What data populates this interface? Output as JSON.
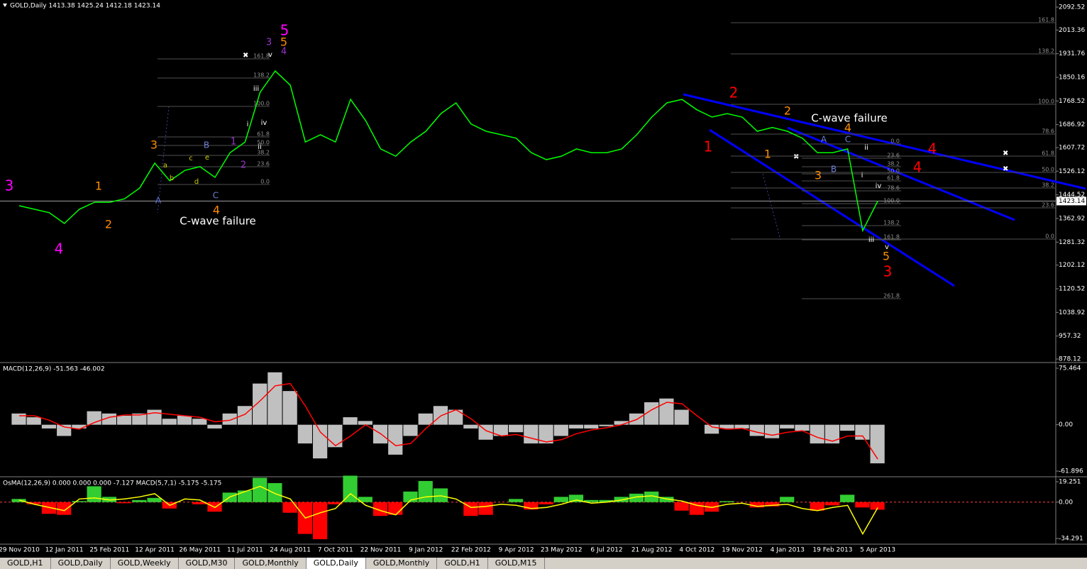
{
  "header": "GOLD,Daily  1413.38 1425.24 1412.18 1423.14",
  "chart_data": [
    {
      "type": "line",
      "title": "GOLD,Daily  1413.38 1425.24 1412.18 1423.14",
      "color": "#00ff00",
      "categories": [
        "29 Nov 2010",
        null,
        null,
        "12 Jan 2011",
        null,
        null,
        "25 Feb 2011",
        null,
        null,
        "12 Apr 2011",
        null,
        null,
        "26 May 2011",
        null,
        null,
        "11 Jul 2011",
        null,
        null,
        "24 Aug 2011",
        null,
        null,
        "7 Oct 2011",
        null,
        null,
        "22 Nov 2011",
        null,
        null,
        "9 Jan 2012",
        null,
        null,
        "22 Feb 2012",
        null,
        null,
        "9 Apr 2012",
        null,
        null,
        "23 May 2012",
        null,
        null,
        "6 Jul 2012",
        null,
        null,
        "21 Aug 2012",
        null,
        null,
        "4 Oct 2012",
        null,
        null,
        "19 Nov 2012",
        null,
        null,
        "4 Jan 2013",
        null,
        null,
        "19 Feb 2013",
        null,
        null,
        "5 Apr 2013"
      ],
      "values": [
        1407,
        1395,
        1383,
        1346,
        1395,
        1419,
        1419,
        1431,
        1468,
        1554,
        1493,
        1529,
        1542,
        1505,
        1590,
        1627,
        1799,
        1872,
        1823,
        1627,
        1652,
        1627,
        1774,
        1701,
        1603,
        1578,
        1627,
        1664,
        1725,
        1762,
        1689,
        1664,
        1652,
        1640,
        1590,
        1566,
        1578,
        1603,
        1590,
        1590,
        1603,
        1652,
        1713,
        1762,
        1774,
        1738,
        1713,
        1725,
        1713,
        1664,
        1677,
        1664,
        1640,
        1590,
        1590,
        1603,
        1321,
        1423.14
      ],
      "current_price": 1423.14,
      "ylim": [
        868.3,
        2117.0
      ],
      "yticks": [
        2092.52,
        2013.36,
        1931.76,
        1850.16,
        1768.52,
        1686.92,
        1607.72,
        1526.12,
        1444.52,
        1362.92,
        1281.32,
        1202.12,
        1120.52,
        1038.92,
        957.32,
        878.12
      ],
      "fib_levels": [
        "0.0",
        "23.6",
        "38.2",
        "50.0",
        "61.8",
        "78.6",
        "100.0",
        "138.2",
        "161.8",
        "261.8"
      ],
      "annotations": [
        {
          "text": "3",
          "color": "#ff00ff"
        },
        {
          "text": "4",
          "color": "#ff00ff"
        },
        {
          "text": "5",
          "color": "#ff00ff"
        },
        {
          "text": "1",
          "color": "#ff8c00"
        },
        {
          "text": "2",
          "color": "#ff8c00"
        },
        {
          "text": "3",
          "color": "#ff8c00"
        },
        {
          "text": "4",
          "color": "#ff8c00"
        },
        {
          "text": "5",
          "color": "#ff8c00"
        },
        {
          "text": "3",
          "color": "#9932cc"
        },
        {
          "text": "4",
          "color": "#9932cc"
        },
        {
          "text": "1",
          "color": "#9932cc"
        },
        {
          "text": "2",
          "color": "#9932cc"
        },
        {
          "text": "C-wave failure",
          "color": "#ffffff"
        },
        {
          "text": "C-wave failure",
          "color": "#ffffff"
        },
        {
          "text": "1",
          "color": "#ff0000"
        },
        {
          "text": "2",
          "color": "#ff0000"
        },
        {
          "text": "3",
          "color": "#ff0000"
        },
        {
          "text": "4",
          "color": "#ff0000"
        },
        {
          "text": "4",
          "color": "#ff0000"
        },
        {
          "text": "2",
          "color": "#ff8c00"
        },
        {
          "text": "4",
          "color": "#ff8c00"
        },
        {
          "text": "1",
          "color": "#ff8c00"
        },
        {
          "text": "3",
          "color": "#ff8c00"
        },
        {
          "text": "5",
          "color": "#ff8c00"
        },
        {
          "text": "A",
          "color": "#6a7fd8"
        },
        {
          "text": "B",
          "color": "#6a7fd8"
        },
        {
          "text": "C",
          "color": "#6a7fd8"
        },
        {
          "text": "A",
          "color": "#6a7fd8"
        },
        {
          "text": "B",
          "color": "#6a7fd8"
        },
        {
          "text": "C",
          "color": "#6a7fd8"
        },
        {
          "text": "a",
          "color": "#cccc00"
        },
        {
          "text": "b",
          "color": "#cccc00"
        },
        {
          "text": "c",
          "color": "#cccc00"
        },
        {
          "text": "d",
          "color": "#cccc00"
        },
        {
          "text": "e",
          "color": "#cccc00"
        },
        {
          "text": "i",
          "color": "#ffffff"
        },
        {
          "text": "ii",
          "color": "#ffffff"
        },
        {
          "text": "iii",
          "color": "#ffffff"
        },
        {
          "text": "iv",
          "color": "#ffffff"
        },
        {
          "text": "v",
          "color": "#ffffff"
        },
        {
          "text": "i",
          "color": "#ffffff"
        },
        {
          "text": "ii",
          "color": "#ffffff"
        },
        {
          "text": "iii",
          "color": "#ffffff"
        },
        {
          "text": "iv",
          "color": "#ffffff"
        },
        {
          "text": "v",
          "color": "#ffffff"
        }
      ]
    },
    {
      "type": "bar",
      "title": "MACD(12,26,9) -51.563 -46.002",
      "color": "#c0c0c0",
      "values": [
        15,
        10,
        -5,
        -15,
        -5,
        18,
        15,
        12,
        15,
        20,
        8,
        12,
        8,
        -5,
        15,
        25,
        55,
        70,
        45,
        -25,
        -45,
        -30,
        10,
        5,
        -25,
        -40,
        -15,
        15,
        25,
        20,
        -5,
        -20,
        -15,
        -10,
        -25,
        -25,
        -15,
        -5,
        -5,
        -2,
        5,
        15,
        30,
        35,
        20,
        0,
        -12,
        -5,
        -5,
        -15,
        -18,
        -5,
        -8,
        -25,
        -25,
        -8,
        -20,
        -51.563
      ],
      "signal": [
        12,
        12,
        6,
        -3,
        -6,
        3,
        10,
        13,
        13,
        16,
        14,
        12,
        10,
        4,
        6,
        14,
        32,
        52,
        55,
        25,
        -10,
        -28,
        -15,
        0,
        -12,
        -28,
        -25,
        -5,
        12,
        20,
        8,
        -8,
        -15,
        -13,
        -18,
        -23,
        -20,
        -12,
        -7,
        -4,
        0,
        7,
        20,
        30,
        28,
        12,
        -3,
        -6,
        -5,
        -10,
        -14,
        -10,
        -8,
        -17,
        -22,
        -15,
        -15,
        -46.002
      ],
      "signal_color": "#ff0000",
      "ylim": [
        -67.6,
        82.1
      ],
      "yticks": [
        75.464,
        {
          "value": 0,
          "label": "0.00"
        },
        -61.896
      ]
    },
    {
      "type": "bar",
      "title": "OsMA(12,26,9) 0.000 0.000 0.000 -7.127 MACD(5,7,1) -5.175 -5.175",
      "up_color": "#32cd32",
      "down_color": "#ff0000",
      "values": [
        3,
        -2,
        -11,
        -12,
        1,
        15,
        5,
        -1,
        2,
        4,
        -6,
        0,
        -2,
        -9,
        9,
        11,
        23,
        18,
        -10,
        -30,
        -35,
        -2,
        25,
        5,
        -13,
        -12,
        10,
        20,
        13,
        0,
        -13,
        -12,
        0,
        3,
        -7,
        -2,
        5,
        7,
        2,
        2,
        5,
        8,
        10,
        5,
        -8,
        -12,
        -9,
        1,
        0,
        -5,
        -4,
        5,
        0,
        -8,
        -3,
        7,
        -5,
        -7.127
      ],
      "line": [
        2,
        -2,
        -5,
        -8,
        3,
        4,
        2,
        3,
        5,
        8,
        -3,
        3,
        2,
        -5,
        5,
        10,
        15,
        8,
        3,
        -15,
        -10,
        -6,
        8,
        -3,
        -8,
        -12,
        2,
        5,
        6,
        3,
        -5,
        -4,
        -2,
        -3,
        -6,
        -5,
        -2,
        2,
        -1,
        0,
        2,
        5,
        6,
        3,
        1,
        -3,
        -5,
        -2,
        -1,
        -4,
        -3,
        -2,
        -6,
        -8,
        -5,
        -3,
        -30,
        -5.175
      ],
      "line_color": "#ffff00",
      "ylim": [
        -39.0,
        23.3
      ],
      "yticks": [
        19.251,
        {
          "value": 0,
          "label": "0.00"
        },
        -34.291
      ]
    }
  ],
  "tabs": [
    "GOLD,H1",
    "GOLD,Daily",
    "GOLD,Weekly",
    "GOLD,M30",
    "GOLD,Monthly",
    "GOLD,Daily",
    "GOLD,Monthly",
    "GOLD,H1",
    "GOLD,M15"
  ]
}
